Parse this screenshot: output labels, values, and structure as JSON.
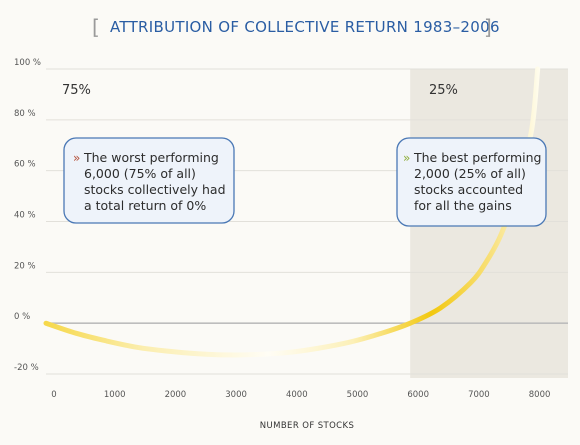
{
  "chart_data": {
    "type": "line",
    "title": "ATTRIBUTION OF COLLECTIVE RETURN 1983–2006",
    "xlabel": "NUMBER OF STOCKS",
    "ylabel": "",
    "xlim": [
      0,
      8600
    ],
    "ylim": [
      -20,
      100
    ],
    "x_ticks": [
      "0",
      "1000",
      "2000",
      "3000",
      "4000",
      "5000",
      "6000",
      "7000",
      "8000"
    ],
    "y_ticks": [
      "100 %",
      "80 %",
      "60 %",
      "40 %",
      "20 %",
      "0 %",
      "-20 %"
    ],
    "series": [
      {
        "x": [
          0,
          500,
          1000,
          1500,
          2000,
          2500,
          3000,
          3500,
          4000,
          4500,
          5000,
          5500,
          6000,
          6500,
          7000,
          7250,
          7500,
          7750,
          8000,
          8100
        ],
        "y": [
          0,
          -4,
          -7,
          -9.5,
          -11,
          -12,
          -12.5,
          -12.3,
          -11.5,
          -9.8,
          -7.5,
          -4.2,
          0,
          6,
          16,
          24,
          35,
          52,
          76,
          100
        ]
      }
    ],
    "regions": [
      {
        "label": "75%",
        "x_start": 0,
        "x_end": 6000,
        "shaded": false
      },
      {
        "label": "25%",
        "x_start": 6000,
        "x_end": 8600,
        "shaded": true
      }
    ],
    "annotations": [
      {
        "bullet": "»",
        "lines": [
          "The worst performing",
          "6,000 (75% of all)",
          "stocks collectively had",
          "a total return of 0%"
        ]
      },
      {
        "bullet": "»",
        "lines": [
          "The best performing",
          "2,000 (25% of all)",
          "stocks accounted",
          "for all the gains"
        ]
      }
    ],
    "grid": true,
    "legend": "none"
  },
  "colors": {
    "title": "#2a5da3",
    "box_border": "#4a78b5",
    "box_fill": "#eef3fa",
    "shade": "#ebe8e0",
    "curve_light": "#fffcef",
    "curve_dark": "#f2c80f",
    "bullet_left": "#b5523b",
    "bullet_right": "#8fae3a"
  }
}
